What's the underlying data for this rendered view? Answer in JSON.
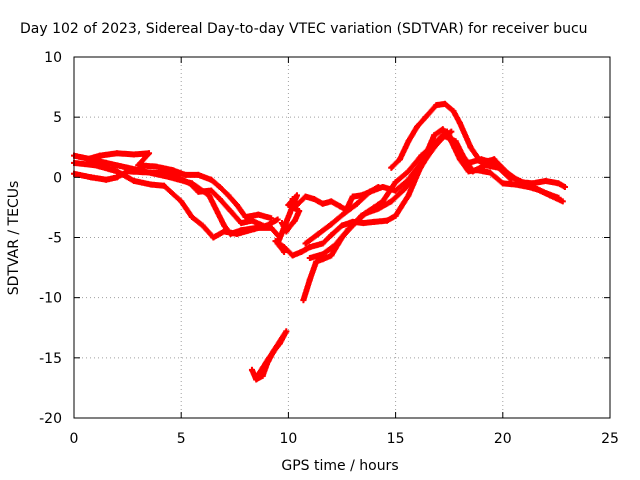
{
  "chart_data": {
    "type": "scatter",
    "title": "Day 102 of 2023, Sidereal Day-to-day VTEC variation (SDTVAR) for receiver bucu",
    "xlabel": "GPS time / hours",
    "ylabel": "SDTVAR / TECUs",
    "xlim": [
      0,
      25
    ],
    "ylim": [
      -20,
      10
    ],
    "grid": true,
    "marker": "plus",
    "xticks": [
      0,
      5,
      10,
      15,
      20,
      25
    ],
    "xtick_labels": [
      "0",
      "5",
      "10",
      "15",
      "20",
      "25"
    ],
    "yticks": [
      -20,
      -15,
      -10,
      -5,
      0,
      5,
      10
    ],
    "ytick_labels": [
      "-20",
      "-15",
      "-10",
      "-5",
      "0",
      "5",
      "10"
    ],
    "series_color": "#ff0000",
    "series": [
      {
        "name": "track-1",
        "points": [
          [
            0,
            1.8
          ],
          [
            0.8,
            1.5
          ],
          [
            1.5,
            1.2
          ],
          [
            2.5,
            0.8
          ],
          [
            3.5,
            0.4
          ],
          [
            4.5,
            0
          ],
          [
            5.5,
            -0.5
          ],
          [
            6.3,
            -1.5
          ],
          [
            7.0,
            -4.0
          ],
          [
            7.3,
            -4.7
          ],
          [
            7.8,
            -4.4
          ],
          [
            8.5,
            -4.2
          ],
          [
            9.2,
            -4.2
          ],
          [
            9.6,
            -5.0
          ]
        ]
      },
      {
        "name": "track-2",
        "points": [
          [
            0,
            1.2
          ],
          [
            1.0,
            1.0
          ],
          [
            2.0,
            0.5
          ],
          [
            2.8,
            -0.3
          ],
          [
            3.6,
            -0.6
          ],
          [
            4.2,
            -0.7
          ],
          [
            5.0,
            -2.0
          ],
          [
            5.5,
            -3.3
          ],
          [
            6.0,
            -4.0
          ],
          [
            6.5,
            -5.0
          ],
          [
            7.0,
            -4.5
          ],
          [
            7.6,
            -4.7
          ],
          [
            8.4,
            -4.3
          ],
          [
            9.0,
            -4.0
          ],
          [
            9.5,
            -3.5
          ]
        ]
      },
      {
        "name": "track-3",
        "points": [
          [
            0,
            0.3
          ],
          [
            0.8,
            0
          ],
          [
            1.5,
            -0.2
          ],
          [
            2.0,
            0
          ],
          [
            2.5,
            0.5
          ],
          [
            3.5,
            0.4
          ],
          [
            4.5,
            0.3
          ],
          [
            5.4,
            -0.5
          ],
          [
            5.8,
            -1.2
          ],
          [
            6.4,
            -1.1
          ],
          [
            6.8,
            -1.8
          ],
          [
            7.3,
            -2.8
          ],
          [
            7.8,
            -3.8
          ],
          [
            8.3,
            -3.6
          ],
          [
            8.8,
            -4.0
          ]
        ]
      },
      {
        "name": "track-4",
        "points": [
          [
            0.6,
            1.5
          ],
          [
            1.2,
            1.8
          ],
          [
            2.0,
            2.0
          ],
          [
            2.8,
            1.9
          ],
          [
            3.5,
            2.0
          ],
          [
            3.0,
            1.0
          ],
          [
            3.8,
            0.9
          ],
          [
            4.6,
            0.6
          ],
          [
            5.2,
            0.2
          ],
          [
            5.8,
            0.2
          ],
          [
            6.4,
            -0.2
          ],
          [
            6.8,
            -0.8
          ],
          [
            7.2,
            -1.5
          ],
          [
            7.6,
            -2.3
          ],
          [
            8.0,
            -3.3
          ],
          [
            8.6,
            -3.1
          ],
          [
            9.2,
            -3.4
          ]
        ]
      },
      {
        "name": "track-5",
        "points": [
          [
            9.4,
            -5.3
          ],
          [
            9.8,
            -5.8
          ],
          [
            10.2,
            -6.5
          ],
          [
            10.6,
            -6.2
          ],
          [
            11.0,
            -5.8
          ],
          [
            11.6,
            -5.5
          ],
          [
            12.0,
            -4.8
          ],
          [
            12.5,
            -4.0
          ],
          [
            13.0,
            -3.7
          ],
          [
            13.5,
            -3.8
          ],
          [
            14.0,
            -3.7
          ],
          [
            14.6,
            -3.6
          ],
          [
            15.0,
            -3.2
          ],
          [
            15.6,
            -1.5
          ],
          [
            16.2,
            1.0
          ],
          [
            16.8,
            3.5
          ],
          [
            17.2,
            4.0
          ],
          [
            17.6,
            3.0
          ],
          [
            18.0,
            1.5
          ],
          [
            18.4,
            0.5
          ],
          [
            18.8,
            0.6
          ],
          [
            19.4,
            0.4
          ],
          [
            20.0,
            -0.5
          ],
          [
            20.6,
            -0.6
          ],
          [
            21.2,
            -0.8
          ],
          [
            21.6,
            -1.0
          ],
          [
            22.2,
            -1.5
          ],
          [
            22.8,
            -2.0
          ]
        ]
      },
      {
        "name": "track-6",
        "points": [
          [
            10.8,
            -5.5
          ],
          [
            11.4,
            -4.7
          ],
          [
            12.0,
            -3.9
          ],
          [
            12.6,
            -3.0
          ],
          [
            13.2,
            -2.2
          ],
          [
            13.8,
            -1.2
          ],
          [
            14.4,
            -0.8
          ],
          [
            15.0,
            -1.1
          ],
          [
            15.6,
            -0.2
          ],
          [
            16.2,
            1.2
          ],
          [
            16.8,
            2.8
          ],
          [
            17.4,
            3.8
          ],
          [
            17.9,
            2.2
          ],
          [
            18.4,
            1.2
          ],
          [
            19.0,
            1.5
          ],
          [
            19.6,
            1.2
          ],
          [
            20.2,
            0.2
          ],
          [
            20.8,
            -0.3
          ],
          [
            21.4,
            -0.8
          ],
          [
            22.0,
            -1.3
          ],
          [
            22.6,
            -1.7
          ]
        ]
      },
      {
        "name": "track-7",
        "points": [
          [
            11.0,
            -6.7
          ],
          [
            11.6,
            -6.4
          ],
          [
            12.2,
            -5.6
          ],
          [
            12.8,
            -4.3
          ],
          [
            13.4,
            -3.2
          ],
          [
            14.0,
            -2.5
          ],
          [
            14.4,
            -2.0
          ],
          [
            15.0,
            -0.4
          ],
          [
            15.6,
            0.5
          ],
          [
            16.2,
            1.8
          ],
          [
            16.8,
            2.8
          ],
          [
            17.2,
            3.5
          ],
          [
            17.8,
            3.0
          ],
          [
            18.2,
            1.6
          ],
          [
            18.6,
            0.5
          ],
          [
            19.2,
            1.0
          ],
          [
            19.8,
            0.8
          ],
          [
            20.4,
            -0.2
          ]
        ]
      },
      {
        "name": "track-8",
        "points": [
          [
            14.8,
            0.8
          ],
          [
            15.2,
            1.5
          ],
          [
            15.6,
            3.0
          ],
          [
            16.0,
            4.2
          ],
          [
            16.4,
            5.0
          ],
          [
            16.9,
            6.0
          ],
          [
            17.3,
            6.1
          ],
          [
            17.7,
            5.5
          ],
          [
            18.0,
            4.5
          ],
          [
            18.5,
            2.5
          ],
          [
            19.0,
            1.2
          ],
          [
            19.6,
            1.5
          ],
          [
            20.2,
            0.4
          ],
          [
            20.8,
            -0.4
          ],
          [
            21.4,
            -0.5
          ],
          [
            22.0,
            -0.3
          ],
          [
            22.6,
            -0.5
          ],
          [
            22.9,
            -0.8
          ]
        ]
      },
      {
        "name": "track-9",
        "points": [
          [
            10.7,
            -10.2
          ],
          [
            11.0,
            -8.5
          ],
          [
            11.3,
            -7.0
          ],
          [
            11.6,
            -6.8
          ],
          [
            12.0,
            -6.5
          ],
          [
            12.5,
            -5.0
          ],
          [
            13.0,
            -4.0
          ],
          [
            13.6,
            -3.0
          ],
          [
            14.2,
            -2.6
          ],
          [
            14.8,
            -2.0
          ],
          [
            15.4,
            -1.0
          ],
          [
            16.0,
            0.3
          ],
          [
            16.4,
            1.5
          ],
          [
            16.8,
            2.5
          ],
          [
            17.2,
            3.3
          ],
          [
            17.6,
            3.8
          ]
        ]
      },
      {
        "name": "track-10",
        "points": [
          [
            10.2,
            -1.8
          ],
          [
            10.4,
            -2.3
          ],
          [
            10.8,
            -1.6
          ],
          [
            11.2,
            -1.8
          ],
          [
            11.6,
            -2.2
          ],
          [
            12.0,
            -2.0
          ],
          [
            12.4,
            -2.4
          ],
          [
            12.7,
            -2.7
          ],
          [
            13.0,
            -1.6
          ],
          [
            13.4,
            -1.5
          ],
          [
            13.8,
            -1.2
          ],
          [
            14.2,
            -0.8
          ]
        ]
      },
      {
        "name": "track-11",
        "points": [
          [
            8.3,
            -16.0
          ],
          [
            8.5,
            -16.8
          ],
          [
            8.8,
            -16.5
          ],
          [
            9.0,
            -15.5
          ],
          [
            9.3,
            -14.5
          ],
          [
            9.6,
            -13.8
          ],
          [
            9.9,
            -12.8
          ],
          [
            8.6,
            -16.4
          ],
          [
            9.1,
            -15.0
          ]
        ]
      },
      {
        "name": "track-12",
        "points": [
          [
            9.7,
            -3.8
          ],
          [
            9.9,
            -4.5
          ],
          [
            10.1,
            -4.0
          ],
          [
            10.3,
            -3.6
          ],
          [
            10.5,
            -2.8
          ],
          [
            10.0,
            -2.3
          ],
          [
            10.4,
            -1.5
          ],
          [
            9.5,
            -5.5
          ],
          [
            9.8,
            -6.2
          ]
        ]
      }
    ]
  }
}
